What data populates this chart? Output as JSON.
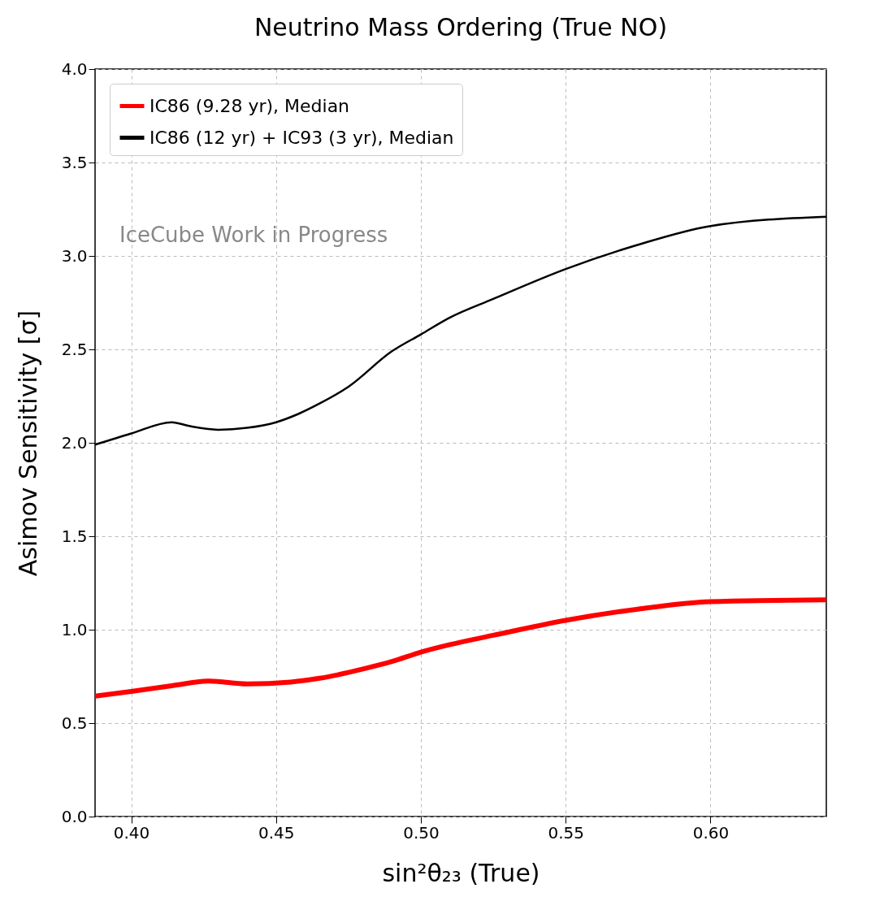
{
  "chart_data": {
    "type": "line",
    "title": "Neutrino Mass Ordering (True NO)",
    "xlabel": "sin²θ₂₃ (True)",
    "ylabel": "Asimov Sensitivity [σ]",
    "annotations": [
      "IceCube Work in Progress"
    ],
    "series": [
      {
        "name": "IC86 (9.28 yr), Median",
        "color": "#ff0000",
        "x": [
          0.3875,
          0.4,
          0.414,
          0.427,
          0.44,
          0.455,
          0.465,
          0.48,
          0.49,
          0.5,
          0.51,
          0.525,
          0.55,
          0.575,
          0.6,
          0.64
        ],
        "values": [
          0.645,
          0.67,
          0.7,
          0.725,
          0.71,
          0.72,
          0.74,
          0.79,
          0.83,
          0.88,
          0.92,
          0.97,
          1.05,
          1.11,
          1.15,
          1.16
        ]
      },
      {
        "name": "IC86 (12 yr) + IC93 (3 yr), Median",
        "color": "#000000",
        "x": [
          0.3875,
          0.4,
          0.414,
          0.42,
          0.43,
          0.44,
          0.45,
          0.457,
          0.465,
          0.475,
          0.49,
          0.5,
          0.51,
          0.525,
          0.55,
          0.575,
          0.6,
          0.64
        ],
        "values": [
          1.99,
          2.05,
          2.11,
          2.09,
          2.07,
          2.08,
          2.11,
          2.15,
          2.21,
          2.3,
          2.49,
          2.58,
          2.67,
          2.77,
          2.93,
          3.06,
          3.16,
          3.21
        ]
      }
    ],
    "xlim": [
      0.3875,
      0.64
    ],
    "ylim": [
      0,
      4
    ],
    "xticks": [
      {
        "value": 0.4,
        "label": "0.40"
      },
      {
        "value": 0.45,
        "label": "0.45"
      },
      {
        "value": 0.5,
        "label": "0.50"
      },
      {
        "value": 0.55,
        "label": "0.55"
      },
      {
        "value": 0.6,
        "label": "0.60"
      }
    ],
    "yticks": [
      {
        "value": 0,
        "label": "0.0"
      },
      {
        "value": 0.5,
        "label": "0.5"
      },
      {
        "value": 1,
        "label": "1.0"
      },
      {
        "value": 1.5,
        "label": "1.5"
      },
      {
        "value": 2,
        "label": "2.0"
      },
      {
        "value": 2.5,
        "label": "2.5"
      },
      {
        "value": 3,
        "label": "3.0"
      },
      {
        "value": 3.5,
        "label": "3.5"
      },
      {
        "value": 4,
        "label": "4.0"
      }
    ],
    "grid": true,
    "legend": "top left"
  }
}
